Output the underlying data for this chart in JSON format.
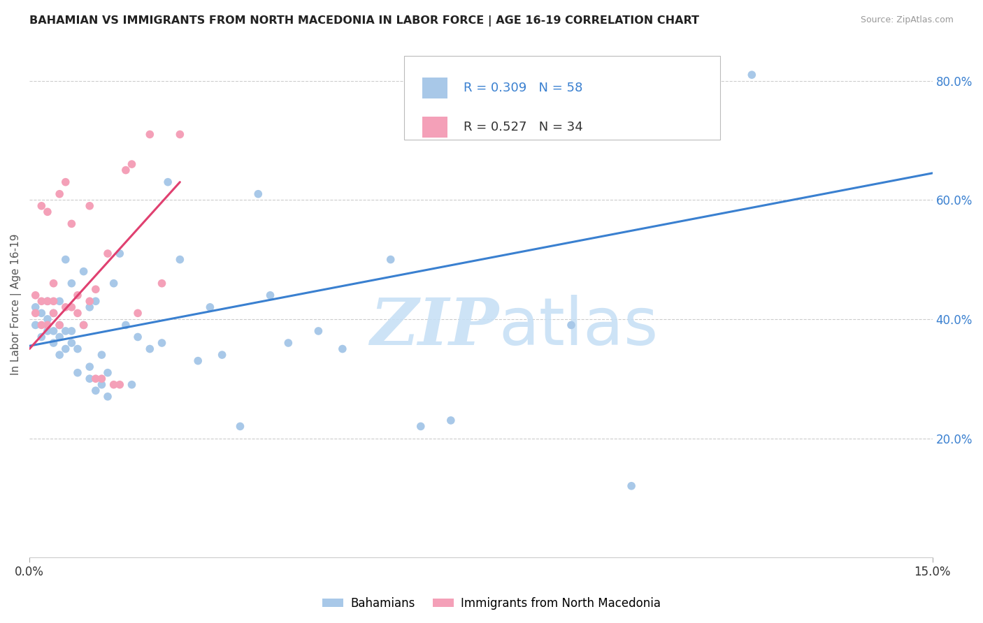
{
  "title": "BAHAMIAN VS IMMIGRANTS FROM NORTH MACEDONIA IN LABOR FORCE | AGE 16-19 CORRELATION CHART",
  "source": "Source: ZipAtlas.com",
  "ylabel": "In Labor Force | Age 16-19",
  "xlim": [
    0.0,
    0.15
  ],
  "ylim": [
    0.0,
    0.85
  ],
  "ytick_labels": [
    "20.0%",
    "40.0%",
    "60.0%",
    "80.0%"
  ],
  "ytick_values": [
    0.2,
    0.4,
    0.6,
    0.8
  ],
  "R1": "0.309",
  "N1": "58",
  "R2": "0.527",
  "N2": "34",
  "color_blue": "#a8c8e8",
  "color_pink": "#f4a0b8",
  "line_blue": "#3a80d0",
  "line_pink": "#e04070",
  "blue_scatter_x": [
    0.001,
    0.001,
    0.002,
    0.002,
    0.003,
    0.003,
    0.003,
    0.004,
    0.004,
    0.004,
    0.005,
    0.005,
    0.005,
    0.005,
    0.006,
    0.006,
    0.006,
    0.007,
    0.007,
    0.007,
    0.008,
    0.008,
    0.009,
    0.009,
    0.01,
    0.01,
    0.01,
    0.011,
    0.011,
    0.012,
    0.012,
    0.013,
    0.013,
    0.014,
    0.015,
    0.016,
    0.017,
    0.018,
    0.02,
    0.022,
    0.023,
    0.025,
    0.028,
    0.03,
    0.032,
    0.035,
    0.038,
    0.04,
    0.043,
    0.048,
    0.052,
    0.06,
    0.065,
    0.07,
    0.085,
    0.09,
    0.1,
    0.12
  ],
  "blue_scatter_y": [
    0.39,
    0.42,
    0.37,
    0.41,
    0.38,
    0.4,
    0.43,
    0.36,
    0.38,
    0.41,
    0.34,
    0.37,
    0.39,
    0.43,
    0.35,
    0.38,
    0.5,
    0.36,
    0.38,
    0.46,
    0.31,
    0.35,
    0.39,
    0.48,
    0.3,
    0.32,
    0.42,
    0.28,
    0.43,
    0.29,
    0.34,
    0.27,
    0.31,
    0.46,
    0.51,
    0.39,
    0.29,
    0.37,
    0.35,
    0.36,
    0.63,
    0.5,
    0.33,
    0.42,
    0.34,
    0.22,
    0.61,
    0.44,
    0.36,
    0.38,
    0.35,
    0.5,
    0.22,
    0.23,
    0.75,
    0.39,
    0.12,
    0.81
  ],
  "pink_scatter_x": [
    0.001,
    0.001,
    0.002,
    0.002,
    0.002,
    0.003,
    0.003,
    0.003,
    0.004,
    0.004,
    0.004,
    0.005,
    0.005,
    0.006,
    0.006,
    0.007,
    0.007,
    0.008,
    0.008,
    0.009,
    0.01,
    0.01,
    0.011,
    0.011,
    0.012,
    0.013,
    0.014,
    0.015,
    0.016,
    0.017,
    0.018,
    0.02,
    0.022,
    0.025
  ],
  "pink_scatter_y": [
    0.41,
    0.44,
    0.39,
    0.43,
    0.59,
    0.39,
    0.43,
    0.58,
    0.41,
    0.43,
    0.46,
    0.39,
    0.61,
    0.42,
    0.63,
    0.42,
    0.56,
    0.41,
    0.44,
    0.39,
    0.43,
    0.59,
    0.3,
    0.45,
    0.3,
    0.51,
    0.29,
    0.29,
    0.65,
    0.66,
    0.41,
    0.71,
    0.46,
    0.71
  ],
  "blue_line_x0": 0.0,
  "blue_line_x1": 0.15,
  "blue_line_y0": 0.355,
  "blue_line_y1": 0.645,
  "pink_line_x0": 0.0,
  "pink_line_x1": 0.025,
  "pink_line_y0": 0.35,
  "pink_line_y1": 0.63,
  "watermark_zip": "ZIP",
  "watermark_atlas": "atlas",
  "legend_bahamians": "Bahamians",
  "legend_immigrants": "Immigrants from North Macedonia",
  "grid_color": "#cccccc",
  "background_color": "#ffffff"
}
